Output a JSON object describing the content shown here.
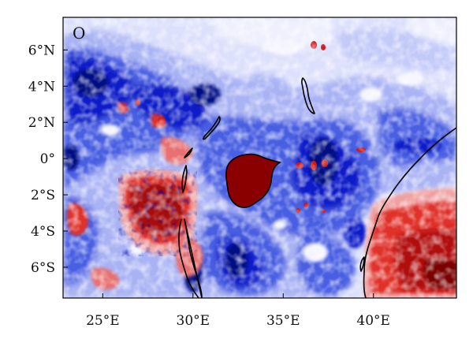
{
  "panel_label": "O",
  "axes": {
    "lon_range": [
      22.8,
      44.6
    ],
    "lat_range": [
      -7.7,
      7.8
    ],
    "x_ticks": [
      {
        "value": 25,
        "label": "25°E"
      },
      {
        "value": 30,
        "label": "30°E"
      },
      {
        "value": 35,
        "label": "35°E"
      },
      {
        "value": 40,
        "label": "40°E"
      }
    ],
    "y_ticks": [
      {
        "value": 6,
        "label": "6°N"
      },
      {
        "value": 4,
        "label": "4°N"
      },
      {
        "value": 2,
        "label": "2°N"
      },
      {
        "value": 0,
        "label": "0°"
      },
      {
        "value": -2,
        "label": "2°S"
      },
      {
        "value": -4,
        "label": "4°S"
      },
      {
        "value": -6,
        "label": "6°S"
      }
    ]
  },
  "colors": {
    "background_pale": "#dde0fb",
    "light_blue": "#a9b3f4",
    "medium_blue": "#4a5fe2",
    "deep_blue": "#0a1fc8",
    "navy": "#061083",
    "light_red": "#f0a0a0",
    "medium_red": "#e0302a",
    "dark_red": "#8a0000",
    "coastline": "#000000"
  },
  "features": [
    {
      "name": "Lake Victoria",
      "shown": "filled dark red region near 33°E, 1°S"
    },
    {
      "name": "Lake Tanganyika",
      "shown": "outline near 30°E, 5–8°S"
    },
    {
      "name": "Lake Turkana",
      "shown": "outline near 36°E, 4°N"
    },
    {
      "name": "Lake Albert",
      "shown": "outline near 31°E, 1.5°N"
    },
    {
      "name": "Lake Kivu",
      "shown": "outline near 29°E, 2°S"
    },
    {
      "name": "Indian Ocean coastline",
      "shown": "outline from 44.5°E 3°N to 39.5°E 7°S"
    }
  ]
}
